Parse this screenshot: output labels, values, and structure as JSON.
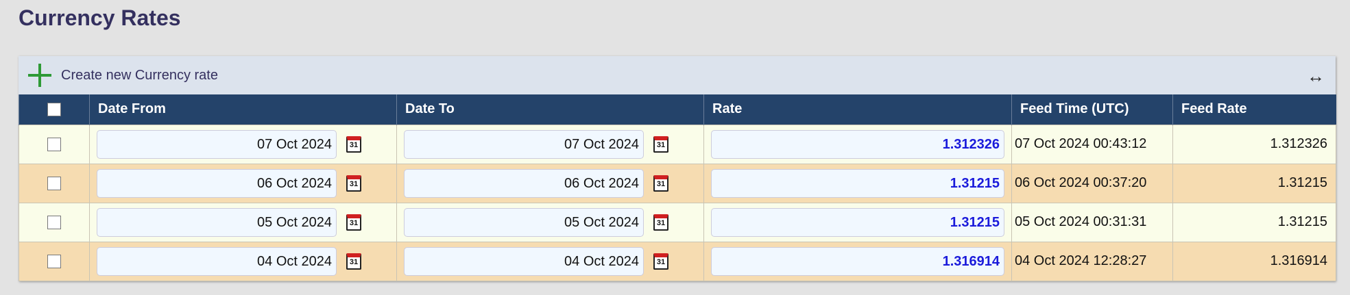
{
  "page_title": "Currency Rates",
  "toolbar": {
    "create_label": "Create new Currency rate",
    "expand_icon": "↔"
  },
  "columns": [
    "Date From",
    "Date To",
    "Rate",
    "Feed Time (UTC)",
    "Feed Rate"
  ],
  "rows": [
    {
      "date_from": "07 Oct 2024",
      "date_to": "07 Oct 2024",
      "rate": "1.312326",
      "feed_time": "07 Oct 2024 00:43:12",
      "feed_rate": "1.312326"
    },
    {
      "date_from": "06 Oct 2024",
      "date_to": "06 Oct 2024",
      "rate": "1.31215",
      "feed_time": "06 Oct 2024 00:37:20",
      "feed_rate": "1.31215"
    },
    {
      "date_from": "05 Oct 2024",
      "date_to": "05 Oct 2024",
      "rate": "1.31215",
      "feed_time": "05 Oct 2024 00:31:31",
      "feed_rate": "1.31215"
    },
    {
      "date_from": "04 Oct 2024",
      "date_to": "04 Oct 2024",
      "rate": "1.316914",
      "feed_time": "04 Oct 2024 12:28:27",
      "feed_rate": "1.316914"
    }
  ],
  "calendar_icon_text": "31",
  "colors": {
    "header": "#24436a",
    "row_odd": "#fafde9",
    "row_even": "#f6dcb1",
    "rate_text": "#1a1adb",
    "plus": "#2e9a36"
  }
}
